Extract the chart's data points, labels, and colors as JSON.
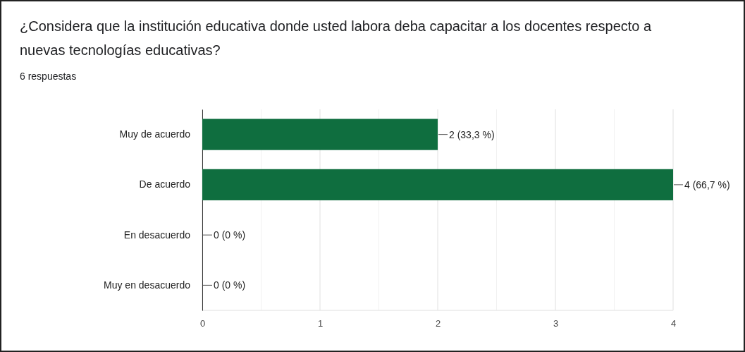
{
  "chart_data": {
    "type": "bar",
    "orientation": "horizontal",
    "title": "¿Considera que la institución educativa donde usted labora deba capacitar a los docentes respecto a nuevas tecnologías educativas?",
    "subtitle": "6 respuestas",
    "categories": [
      "Muy de acuerdo",
      "De acuerdo",
      "En desacuerdo",
      "Muy en desacuerdo"
    ],
    "values": [
      2,
      4,
      0,
      0
    ],
    "value_labels": [
      "2 (33,3 %)",
      "4 (66,7 %)",
      "0 (0 %)",
      "0 (0 %)"
    ],
    "color": "#0f6e3f",
    "xlim": [
      0,
      4
    ],
    "xticks": [
      0,
      {
        "value": 0.5,
        "label": null
      },
      1,
      {
        "value": 1.5,
        "label": null
      },
      2,
      {
        "value": 2.5,
        "label": null
      },
      3,
      {
        "value": 3.5,
        "label": null
      },
      4
    ],
    "grid": "x"
  }
}
